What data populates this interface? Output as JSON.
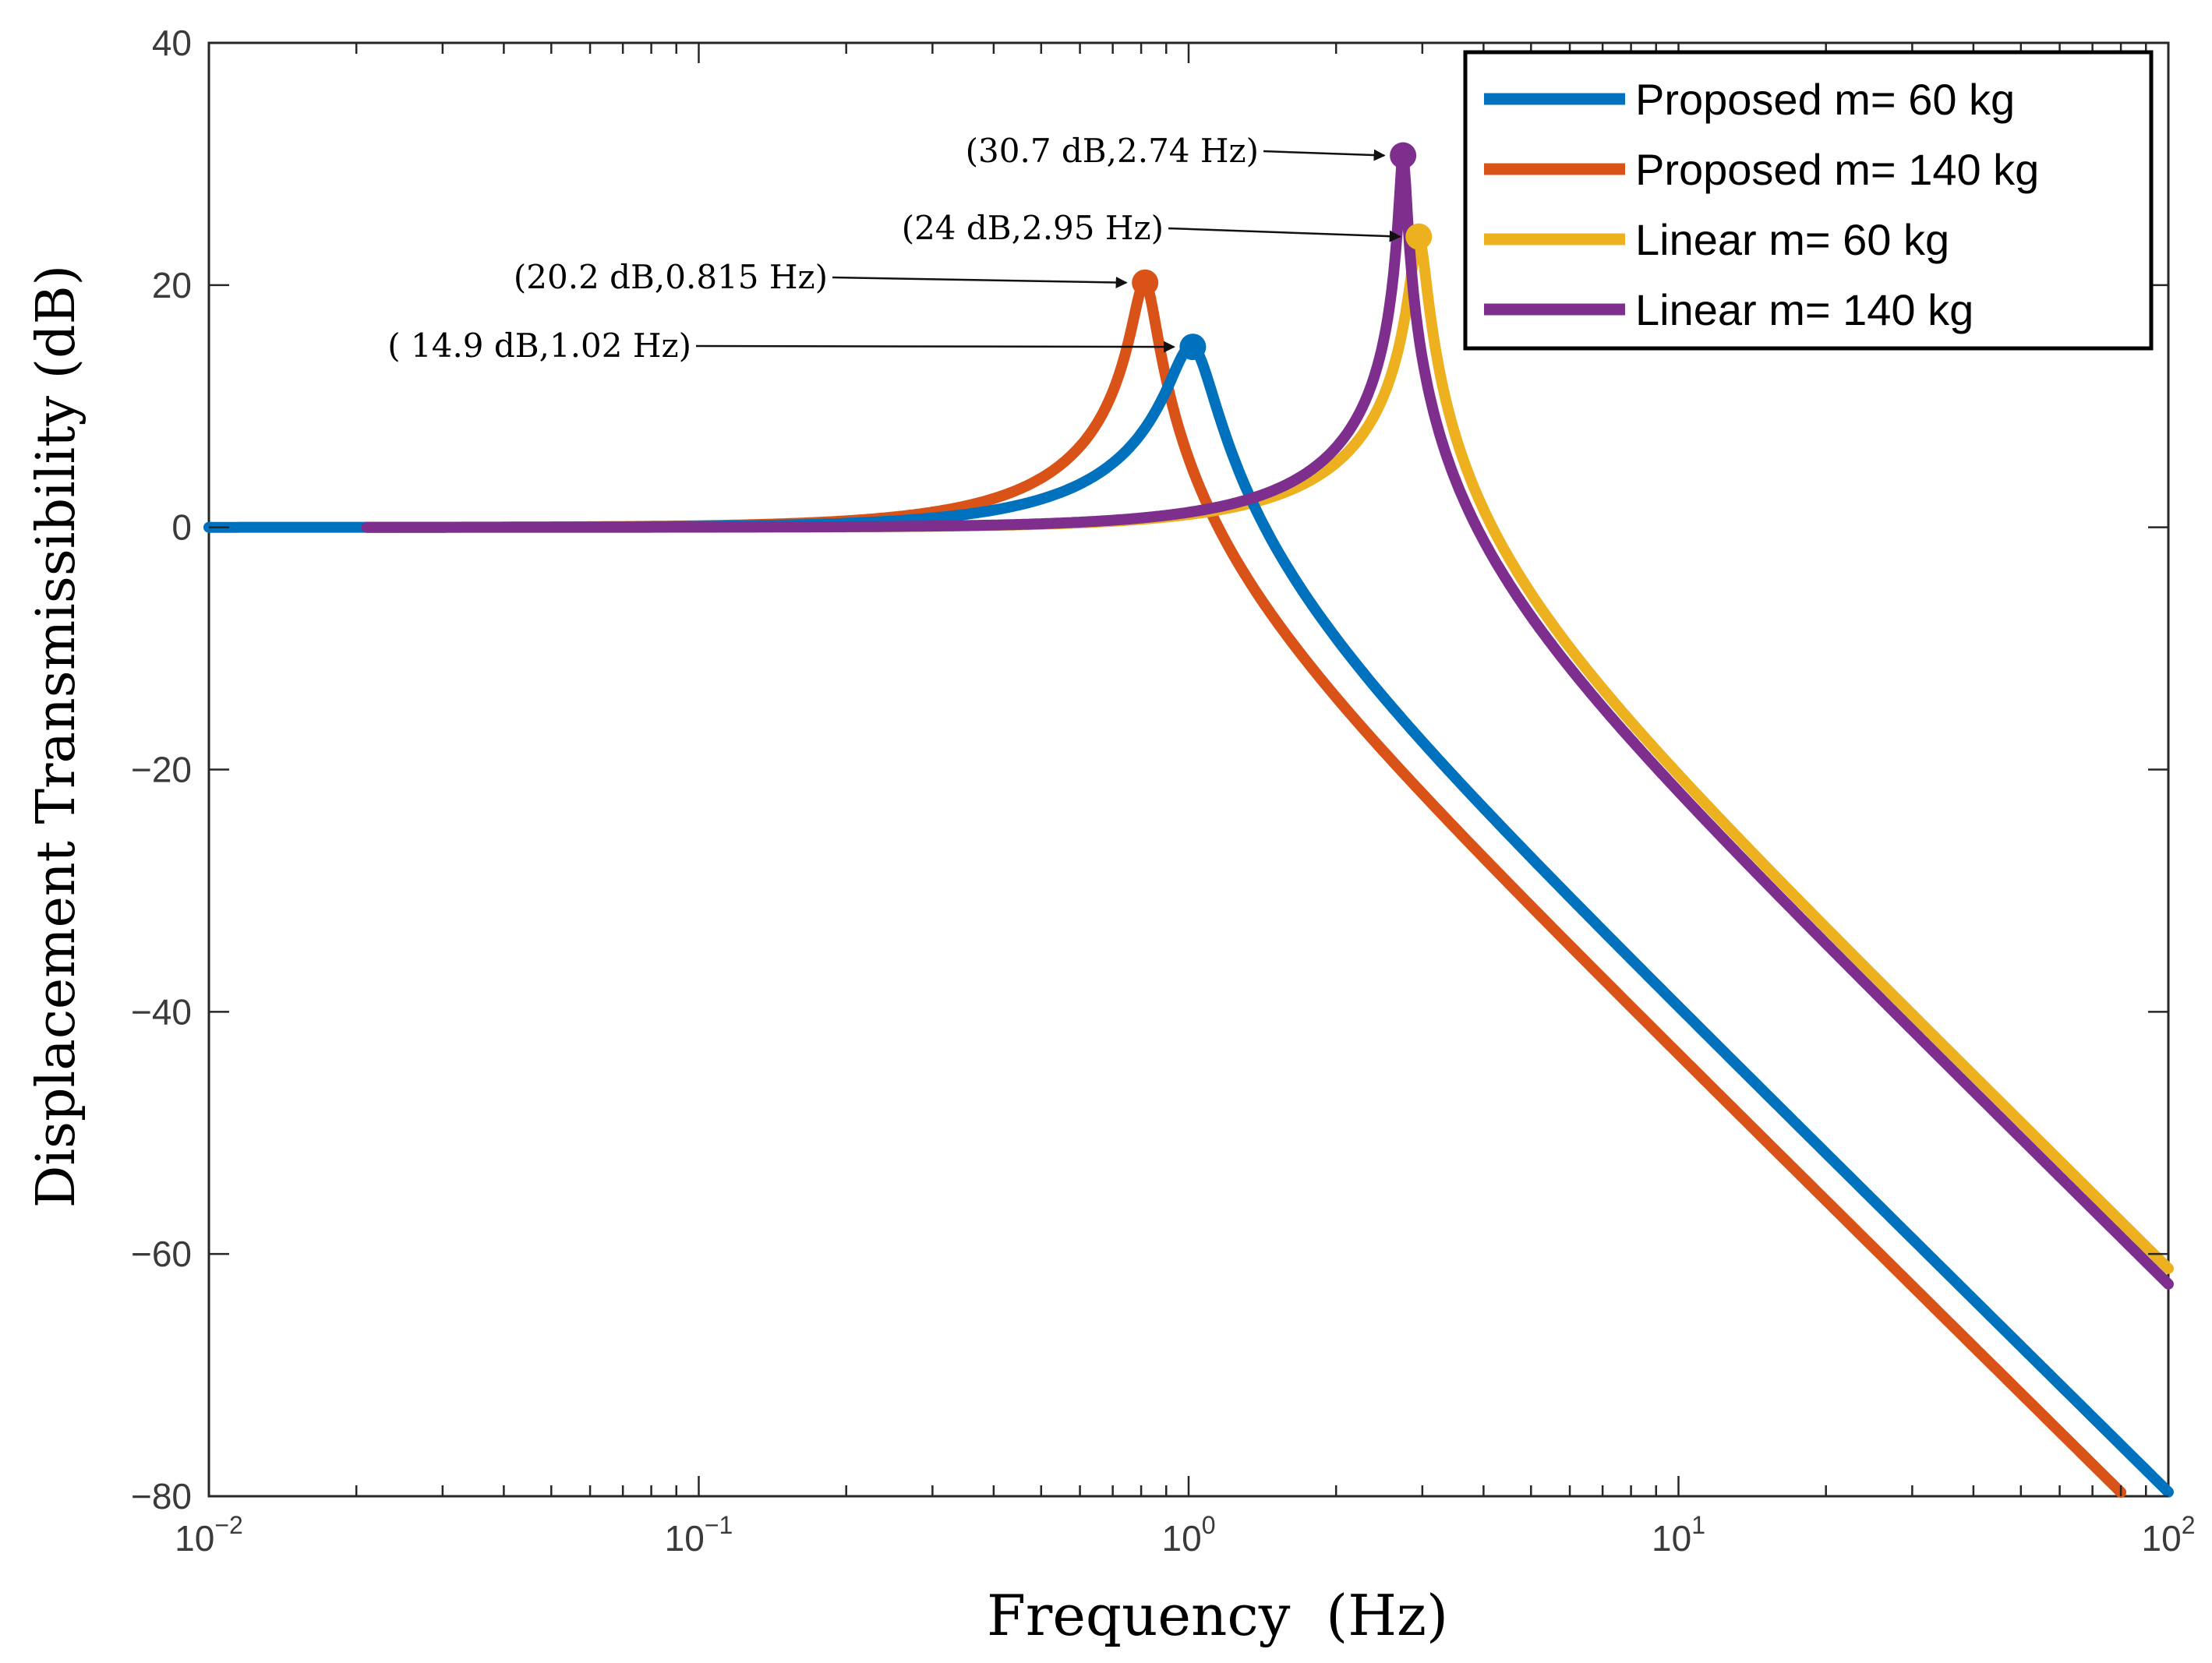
{
  "chart_data": {
    "type": "line",
    "xscale": "log",
    "xlabel": "Frequency  (Hz)",
    "ylabel": "Displacement Transmissibility (dB)",
    "xlim": [
      0.01,
      100
    ],
    "ylim": [
      -80,
      40
    ],
    "xticks": [
      {
        "value": 0.01,
        "base": "10",
        "exp": "−2"
      },
      {
        "value": 0.1,
        "base": "10",
        "exp": "−1"
      },
      {
        "value": 1,
        "base": "10",
        "exp": "0"
      },
      {
        "value": 10,
        "base": "10",
        "exp": "1"
      },
      {
        "value": 100,
        "base": "10",
        "exp": "2"
      }
    ],
    "yticks": [
      {
        "value": 40,
        "label": "40"
      },
      {
        "value": 20,
        "label": "20"
      },
      {
        "value": 0,
        "label": "0"
      },
      {
        "value": -20,
        "label": "−20"
      },
      {
        "value": -40,
        "label": "−40"
      },
      {
        "value": -60,
        "label": "−60"
      },
      {
        "value": -80,
        "label": "−80"
      }
    ],
    "legend_position": "top-right",
    "series": [
      {
        "name": "Proposed m= 60 kg",
        "color": "#0072BD",
        "fn": 1.02,
        "peak_db": 14.9,
        "x_start": 0.01,
        "x_end": 100
      },
      {
        "name": "Proposed m= 140 kg",
        "color": "#D95319",
        "fn": 0.815,
        "peak_db": 20.2,
        "x_start": 0.021,
        "x_end": 80
      },
      {
        "name": "Linear m= 60 kg",
        "color": "#EDB120",
        "fn": 2.95,
        "peak_db": 24,
        "x_start": 0.021,
        "x_end": 100
      },
      {
        "name": "Linear m= 140 kg",
        "color": "#7E2F8E",
        "fn": 2.74,
        "peak_db": 30.7,
        "x_start": 0.021,
        "x_end": 100
      }
    ],
    "annotations": [
      {
        "text": "(30.7 dB,2.74 Hz)",
        "series": 3,
        "x": 2.74,
        "y": 30.7
      },
      {
        "text": "(24 dB,2.95 Hz)",
        "series": 2,
        "x": 2.95,
        "y": 24
      },
      {
        "text": "(20.2 dB,0.815 Hz)",
        "series": 1,
        "x": 0.815,
        "y": 20.2
      },
      {
        "text": "( 14.9 dB,1.02 Hz)",
        "series": 0,
        "x": 1.02,
        "y": 14.9
      }
    ]
  }
}
